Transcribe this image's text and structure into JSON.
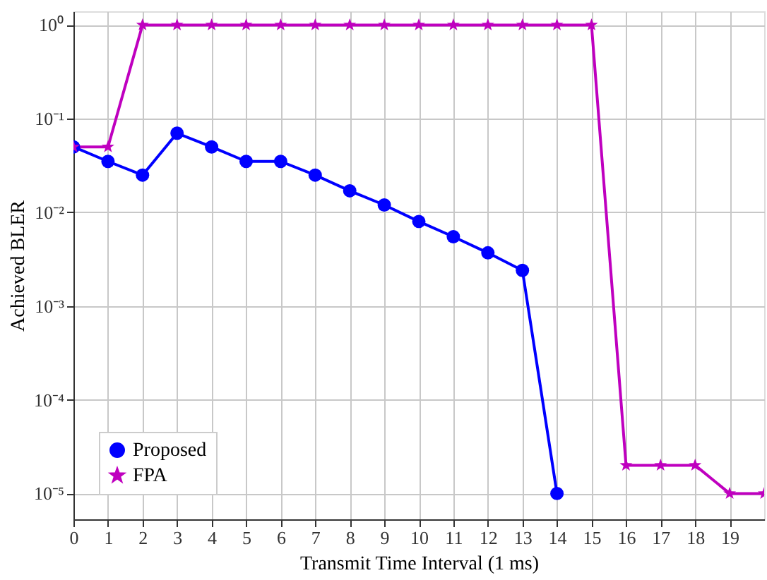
{
  "chart_data": {
    "type": "line",
    "xlabel": "Transmit Time Interval (1 ms)",
    "ylabel": "Achieved BLER",
    "x": [
      0,
      1,
      2,
      3,
      4,
      5,
      6,
      7,
      8,
      9,
      10,
      11,
      12,
      13,
      14,
      15,
      16,
      17,
      18,
      19,
      20
    ],
    "series": [
      {
        "name": "Proposed",
        "color": "#0000ff",
        "marker": "circle",
        "values": [
          0.05,
          0.035,
          0.025,
          0.07,
          0.05,
          0.035,
          0.035,
          0.025,
          0.017,
          0.012,
          0.008,
          0.0055,
          0.0037,
          0.0024,
          1e-05,
          null,
          null,
          null,
          null,
          null,
          null
        ]
      },
      {
        "name": "FPA",
        "color": "#bf00bf",
        "marker": "star",
        "values": [
          0.05,
          0.05,
          1,
          1,
          1,
          1,
          1,
          1,
          1,
          1,
          1,
          1,
          1,
          1,
          1,
          1,
          2e-05,
          2e-05,
          2e-05,
          1e-05,
          1e-05
        ]
      }
    ],
    "xlim": [
      0,
      20
    ],
    "xticks": [
      0,
      1,
      2,
      3,
      4,
      5,
      6,
      7,
      8,
      9,
      10,
      11,
      12,
      13,
      14,
      15,
      16,
      17,
      18,
      19
    ],
    "ylim": [
      5.3e-06,
      1.4
    ],
    "log": true,
    "yticks": [
      {
        "value": 1e-05,
        "label": "10⁻⁵"
      },
      {
        "value": 0.0001,
        "label": "10⁻⁴"
      },
      {
        "value": 0.001,
        "label": "10⁻³"
      },
      {
        "value": 0.01,
        "label": "10⁻²"
      },
      {
        "value": 0.1,
        "label": "10⁻¹"
      },
      {
        "value": 1,
        "label": "10⁰"
      }
    ],
    "grid": true,
    "legend": "bottom left",
    "line_style": "solid"
  }
}
